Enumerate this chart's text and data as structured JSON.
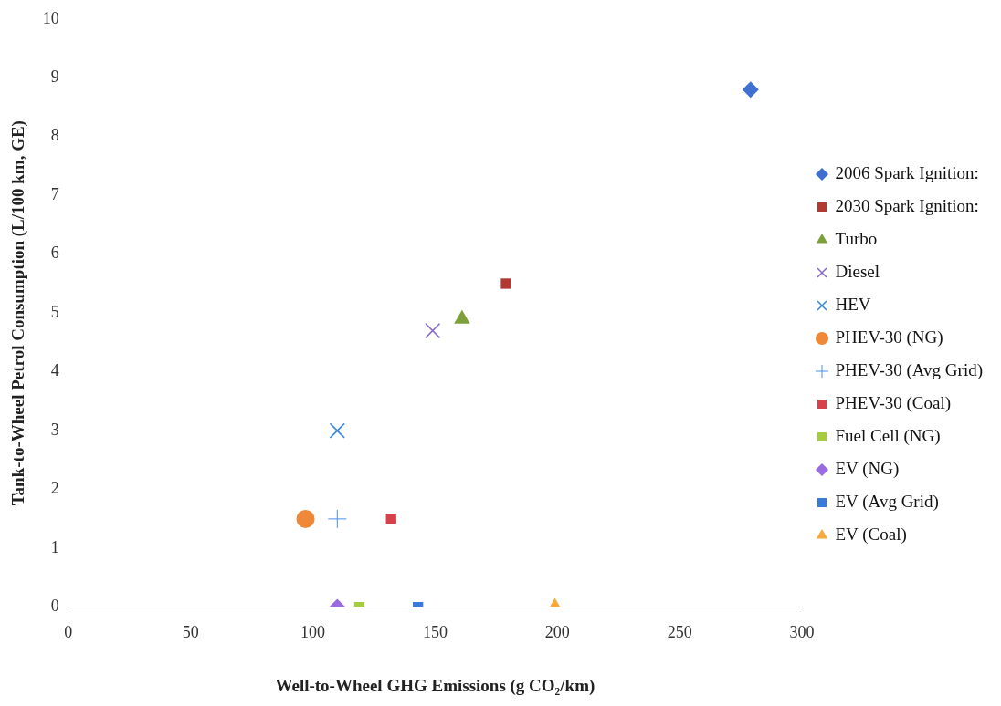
{
  "chart_data": {
    "type": "scatter",
    "xlabel": "Well-to-Wheel GHG Emissions (g CO₂/km)",
    "ylabel": "Tank-to-Wheel Petrol Consumption (L/100 km, GE)",
    "xlim": [
      0,
      300
    ],
    "xticks": [
      0,
      50,
      100,
      150,
      200,
      250,
      300
    ],
    "ylim": [
      0,
      10
    ],
    "yticks": [
      0,
      1,
      2,
      3,
      4,
      5,
      6,
      7,
      8,
      9,
      10
    ],
    "grid": false,
    "legend": "right",
    "series": [
      {
        "name": "2006 Spark Ignition:",
        "color": "#3f6fd0",
        "marker": "diamond",
        "x": [
          279
        ],
        "values": [
          8.8
        ]
      },
      {
        "name": "2030 Spark Ignition:",
        "color": "#b03a32",
        "marker": "square",
        "x": [
          179
        ],
        "values": [
          5.5
        ]
      },
      {
        "name": "Turbo",
        "color": "#7ea03a",
        "marker": "triangle",
        "x": [
          161
        ],
        "values": [
          4.9
        ]
      },
      {
        "name": "Diesel",
        "color": "#8a6cc8",
        "marker": "x",
        "x": [
          149
        ],
        "values": [
          4.7
        ]
      },
      {
        "name": "HEV",
        "color": "#3a8ad8",
        "marker": "x",
        "x": [
          110
        ],
        "values": [
          3.0
        ]
      },
      {
        "name": "PHEV-30 (NG)",
        "color": "#f0883a",
        "marker": "circle",
        "x": [
          97
        ],
        "values": [
          1.5
        ]
      },
      {
        "name": "PHEV-30 (Avg Grid)",
        "color": "#4a8cf0",
        "marker": "cross",
        "x": [
          110
        ],
        "values": [
          1.5
        ]
      },
      {
        "name": "PHEV-30 (Coal)",
        "color": "#d8404a",
        "marker": "square",
        "x": [
          132
        ],
        "values": [
          1.5
        ]
      },
      {
        "name": "Fuel Cell (NG)",
        "color": "#a8cc40",
        "marker": "square",
        "x": [
          119
        ],
        "values": [
          0
        ]
      },
      {
        "name": "EV (NG)",
        "color": "#9a6ae0",
        "marker": "diamond",
        "x": [
          110
        ],
        "values": [
          0
        ]
      },
      {
        "name": "EV (Avg Grid)",
        "color": "#3a7ad8",
        "marker": "square",
        "x": [
          143
        ],
        "values": [
          0
        ]
      },
      {
        "name": "EV (Coal)",
        "color": "#f8a838",
        "marker": "triangle",
        "x": [
          199
        ],
        "values": [
          0
        ]
      }
    ]
  }
}
